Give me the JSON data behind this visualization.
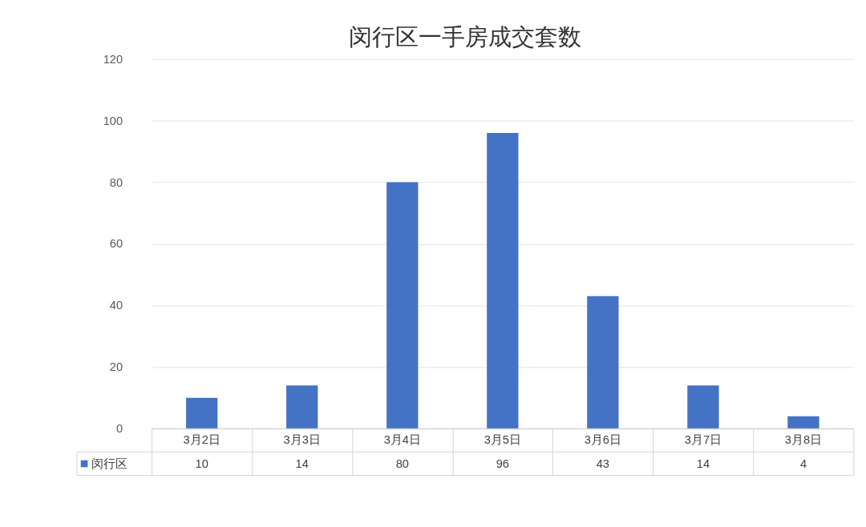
{
  "chart_data": {
    "type": "bar",
    "title": "闵行区一手房成交套数",
    "categories": [
      "3月2日",
      "3月3日",
      "3月4日",
      "3月5日",
      "3月6日",
      "3月7日",
      "3月8日"
    ],
    "series": [
      {
        "name": "闵行区",
        "color": "#4472c4",
        "values": [
          10,
          14,
          80,
          96,
          43,
          14,
          4
        ]
      }
    ],
    "ylim": [
      0,
      120
    ],
    "yticks": [
      0,
      20,
      40,
      60,
      80,
      100,
      120
    ],
    "grid": "y",
    "legend": "bottom",
    "data_labels": true
  }
}
